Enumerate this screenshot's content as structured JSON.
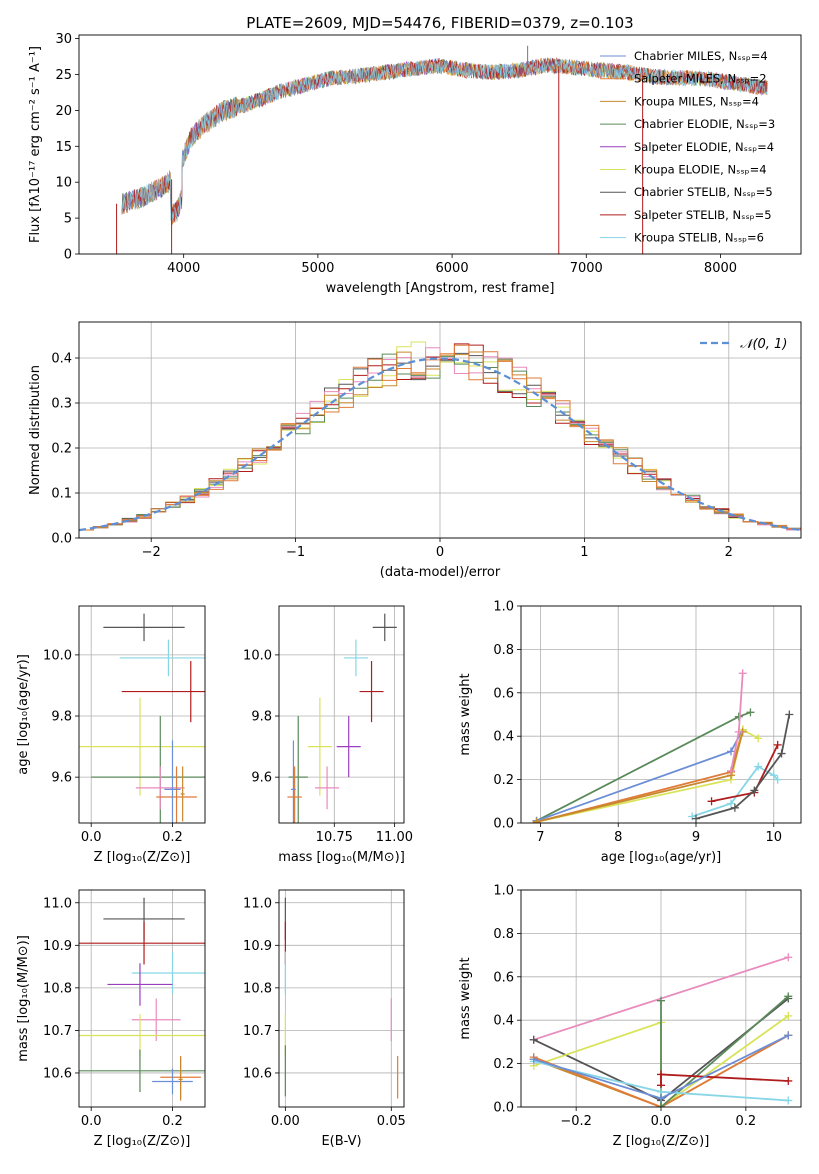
{
  "figure_title": "PLATE=2609, MJD=54476, FIBERID=0379, z=0.103",
  "colors": {
    "Chabrier MILES": "#6b8ed6",
    "Salpeter MILES": "#e07b39",
    "Kroupa MILES": "#c8892e",
    "Chabrier ELODIE": "#5a8a5a",
    "Salpeter ELODIE": "#9b3fc0",
    "Kroupa ELODIE": "#d9e35a",
    "Chabrier STELIB": "#555555",
    "Salpeter STELIB": "#b01c1c",
    "Kroupa STELIB": "#86d6e6",
    "pink": "#e88bbd",
    "gauss": "#5b8fd6",
    "grid": "#b0b0b0"
  },
  "chart_data": [
    {
      "id": "spectrum",
      "type": "line",
      "title": "PLATE=2609, MJD=54476, FIBERID=0379, z=0.103",
      "xlabel": "wavelength [Angstrom, rest frame]",
      "ylabel": "Flux [fλ10⁻¹⁷ erg cm⁻² s⁻¹ A⁻¹]",
      "xlim": [
        3220,
        8600
      ],
      "ylim": [
        0,
        30.5
      ],
      "xticks": [
        "4000",
        "5000",
        "6000",
        "7000",
        "8000"
      ],
      "yticks": [
        "0",
        "5",
        "10",
        "15",
        "20",
        "25",
        "30"
      ],
      "grid": false,
      "legend_position": "right",
      "legend": [
        "Chabrier MILES, N_SSP=4",
        "Salpeter MILES, N_SSP=2",
        "Kroupa MILES, N_SSP=4",
        "Chabrier ELODIE, N_SSP=3",
        "Salpeter ELODIE, N_SSP=4",
        "Kroupa ELODIE, N_SSP=4",
        "Chabrier STELIB, N_SSP=5",
        "Salpeter STELIB, N_SSP=5",
        "Kroupa STELIB, N_SSP=6"
      ],
      "continuum": {
        "x": [
          3550,
          3700,
          3850,
          3950,
          4050,
          4150,
          4300,
          4500,
          4700,
          4900,
          5100,
          5300,
          5500,
          5700,
          5900,
          6100,
          6300,
          6500,
          6700,
          6900,
          7100,
          7300,
          7500,
          7700,
          7900,
          8100,
          8300
        ],
        "y": [
          7,
          8,
          9.5,
          11,
          16,
          18,
          20,
          21,
          22.5,
          23.5,
          24.5,
          24.8,
          25.3,
          25.8,
          26.2,
          25.6,
          25.3,
          25.6,
          26.3,
          26,
          25.6,
          25.3,
          24.7,
          24.5,
          24.4,
          23.8,
          23.2
        ]
      },
      "features": [
        {
          "x": 6563,
          "y": 29
        },
        {
          "x": 3500,
          "y": 0
        },
        {
          "x": 3910,
          "y": 0
        },
        {
          "x": 6795,
          "y": 0
        },
        {
          "x": 7420,
          "y": 0
        }
      ]
    },
    {
      "id": "residual-hist",
      "type": "line",
      "xlabel": "(data-model)/error",
      "ylabel": "Normed distribution",
      "xlim": [
        -2.5,
        2.5
      ],
      "ylim": [
        0,
        0.48
      ],
      "xticks": [
        "−2",
        "−1",
        "0",
        "1",
        "2"
      ],
      "yticks": [
        "0.0",
        "0.1",
        "0.2",
        "0.3",
        "0.4"
      ],
      "grid": true,
      "legend": [
        "𝒩(0, 1)"
      ],
      "legend_position": "top-right",
      "bin_width": 0.1
    },
    {
      "id": "age-vs-Z",
      "type": "scatter",
      "xlabel": "Z [log₁₀(Z/Z⊙)]",
      "ylabel": "age  [log₁₀(age/yr)]",
      "xlim": [
        -0.03,
        0.28
      ],
      "ylim": [
        9.45,
        10.16
      ],
      "xticks": [
        "0.0",
        "0.2"
      ],
      "yticks": [
        "9.6",
        "9.8",
        "10.0"
      ],
      "grid": true,
      "points": [
        {
          "label": "Chabrier STELIB",
          "x": 0.13,
          "xerr": 0.1,
          "y": 10.09,
          "yerr": 0.045
        },
        {
          "label": "Kroupa STELIB",
          "x": 0.19,
          "xerr": 0.12,
          "y": 9.99,
          "yerr": 0.06
        },
        {
          "label": "Salpeter STELIB",
          "x": 0.245,
          "xerr": 0.17,
          "y": 9.88,
          "yerr": 0.1
        },
        {
          "label": "Kroupa ELODIE",
          "x": 0.12,
          "xerr": 0.17,
          "y": 9.7,
          "yerr": 0.16
        },
        {
          "label": "Chabrier ELODIE",
          "x": 0.17,
          "xerr": 0.17,
          "y": 9.6,
          "yerr": 0.2
        },
        {
          "label": "pink",
          "x": 0.17,
          "xerr": 0.06,
          "y": 9.565,
          "yerr": 0.07
        },
        {
          "label": "Salpeter MILES",
          "x": 0.21,
          "xerr": 0.05,
          "y": 9.535,
          "yerr": 0.1
        },
        {
          "label": "Chabrier MILES",
          "x": 0.2,
          "xerr": 0.02,
          "y": 9.56,
          "yerr": 0.16
        },
        {
          "label": "Kroupa MILES",
          "x": 0.225,
          "xerr": 0.005,
          "y": 9.545,
          "yerr": 0.09
        }
      ]
    },
    {
      "id": "age-vs-mass",
      "type": "scatter",
      "xlabel": "mass [log₁₀(M/M⊙)]",
      "ylabel": "",
      "xlim": [
        10.52,
        11.04
      ],
      "ylim": [
        9.45,
        10.16
      ],
      "xticks": [
        "10.75",
        "11.00"
      ],
      "yticks": [
        "9.6",
        "9.8",
        "10.0"
      ],
      "grid": true,
      "points": [
        {
          "label": "Chabrier STELIB",
          "x": 10.96,
          "xerr": 0.05,
          "y": 10.09,
          "yerr": 0.045
        },
        {
          "label": "Kroupa STELIB",
          "x": 10.84,
          "xerr": 0.05,
          "y": 9.99,
          "yerr": 0.06
        },
        {
          "label": "Salpeter STELIB",
          "x": 10.905,
          "xerr": 0.05,
          "y": 9.88,
          "yerr": 0.1
        },
        {
          "label": "Salpeter ELODIE",
          "x": 10.81,
          "xerr": 0.05,
          "y": 9.7,
          "yerr": 0.1
        },
        {
          "label": "Kroupa ELODIE",
          "x": 10.69,
          "xerr": 0.05,
          "y": 9.7,
          "yerr": 0.16
        },
        {
          "label": "Chabrier ELODIE",
          "x": 10.6,
          "xerr": 0.04,
          "y": 9.6,
          "yerr": 0.2
        },
        {
          "label": "pink",
          "x": 10.72,
          "xerr": 0.05,
          "y": 9.565,
          "yerr": 0.07
        },
        {
          "label": "Salpeter MILES",
          "x": 10.585,
          "xerr": 0.03,
          "y": 9.535,
          "yerr": 0.1
        },
        {
          "label": "Chabrier MILES",
          "x": 10.58,
          "xerr": 0.01,
          "y": 9.56,
          "yerr": 0.16
        }
      ]
    },
    {
      "id": "weight-vs-age",
      "type": "line",
      "xlabel": "age  [log₁₀(age/yr)]",
      "ylabel": "mass weight",
      "xlim": [
        6.75,
        10.35
      ],
      "ylim": [
        0,
        1.0
      ],
      "xticks": [
        "7",
        "8",
        "9",
        "10"
      ],
      "yticks": [
        "0.0",
        "0.2",
        "0.4",
        "0.6",
        "0.8",
        "1.0"
      ],
      "grid": true,
      "series": [
        {
          "label": "Chabrier ELODIE",
          "x": [
            6.95,
            9.55,
            9.7
          ],
          "y": [
            0.01,
            0.49,
            0.51
          ]
        },
        {
          "label": "Chabrier MILES",
          "x": [
            6.95,
            9.45,
            9.6
          ],
          "y": [
            0.01,
            0.33,
            0.43
          ]
        },
        {
          "label": "Salpeter MILES",
          "x": [
            6.95,
            9.45,
            9.6
          ],
          "y": [
            0.005,
            0.235,
            0.43
          ]
        },
        {
          "label": "Kroupa ELODIE",
          "x": [
            6.95,
            9.45,
            9.6,
            9.8
          ],
          "y": [
            0.005,
            0.2,
            0.43,
            0.39
          ]
        },
        {
          "label": "Kroupa MILES",
          "x": [
            6.95,
            9.45,
            9.6
          ],
          "y": [
            0.005,
            0.22,
            0.42
          ]
        },
        {
          "label": "pink",
          "x": [
            9.45,
            9.55,
            9.6
          ],
          "y": [
            0.24,
            0.42,
            0.69
          ]
        },
        {
          "label": "Kroupa STELIB",
          "x": [
            8.95,
            9.45,
            9.8,
            10.0,
            10.05
          ],
          "y": [
            0.03,
            0.09,
            0.26,
            0.22,
            0.2
          ]
        },
        {
          "label": "Salpeter STELIB",
          "x": [
            9.2,
            9.75,
            10.05
          ],
          "y": [
            0.1,
            0.14,
            0.36
          ]
        },
        {
          "label": "Chabrier STELIB",
          "x": [
            9.0,
            9.5,
            9.75,
            10.1,
            10.2
          ],
          "y": [
            0.02,
            0.07,
            0.15,
            0.32,
            0.5
          ]
        }
      ]
    },
    {
      "id": "mass-vs-Z",
      "type": "scatter",
      "xlabel": "Z [log₁₀(Z/Z⊙)]",
      "ylabel": "mass [log₁₀(M/M⊙)]",
      "xlim": [
        -0.03,
        0.28
      ],
      "ylim": [
        10.52,
        11.03
      ],
      "xticks": [
        "0.0",
        "0.2"
      ],
      "yticks": [
        "10.6",
        "10.7",
        "10.8",
        "10.9",
        "11.0"
      ],
      "grid": true,
      "points": [
        {
          "label": "Chabrier STELIB",
          "x": 0.13,
          "xerr": 0.1,
          "y": 10.962,
          "yerr": 0.05
        },
        {
          "label": "Salpeter STELIB",
          "x": 0.13,
          "xerr": 0.18,
          "y": 10.905,
          "yerr": 0.05
        },
        {
          "label": "Kroupa STELIB",
          "x": 0.2,
          "xerr": 0.1,
          "y": 10.835,
          "yerr": 0.05
        },
        {
          "label": "Salpeter ELODIE",
          "x": 0.12,
          "xerr": 0.08,
          "y": 10.808,
          "yerr": 0.05
        },
        {
          "label": "pink",
          "x": 0.16,
          "xerr": 0.06,
          "y": 10.725,
          "yerr": 0.05
        },
        {
          "label": "Kroupa ELODIE",
          "x": 0.12,
          "xerr": 0.17,
          "y": 10.688,
          "yerr": 0.05
        },
        {
          "label": "Chabrier ELODIE",
          "x": 0.12,
          "xerr": 0.17,
          "y": 10.605,
          "yerr": 0.05
        },
        {
          "label": "Salpeter MILES",
          "x": 0.22,
          "xerr": 0.05,
          "y": 10.59,
          "yerr": 0.05
        },
        {
          "label": "Chabrier MILES",
          "x": 0.2,
          "xerr": 0.05,
          "y": 10.58,
          "yerr": 0.03
        },
        {
          "label": "Kroupa MILES",
          "x": 0.22,
          "xerr": 0.005,
          "y": 10.585,
          "yerr": 0.05
        }
      ]
    },
    {
      "id": "mass-vs-EBV",
      "type": "scatter",
      "xlabel": "E(B-V)",
      "ylabel": "",
      "xlim": [
        -0.003,
        0.056
      ],
      "ylim": [
        10.52,
        11.03
      ],
      "xticks": [
        "0.00",
        "0.05"
      ],
      "yticks": [
        "10.6",
        "10.7",
        "10.8",
        "10.9",
        "11.0"
      ],
      "grid": true,
      "points": [
        {
          "label": "Chabrier STELIB",
          "x": 0.0,
          "xerr": 0.0,
          "y": 10.962,
          "yerr": 0.05
        },
        {
          "label": "Salpeter STELIB",
          "x": 0.0,
          "xerr": 0.0,
          "y": 10.905,
          "yerr": 0.05
        },
        {
          "label": "Kroupa STELIB",
          "x": 0.0,
          "xerr": 0.0,
          "y": 10.835,
          "yerr": 0.05
        },
        {
          "label": "Kroupa ELODIE",
          "x": 0.0,
          "xerr": 0.0,
          "y": 10.688,
          "yerr": 0.05
        },
        {
          "label": "Chabrier ELODIE",
          "x": 0.0,
          "xerr": 0.0,
          "y": 10.605,
          "yerr": 0.06
        },
        {
          "label": "pink",
          "x": 0.05,
          "xerr": 0.0,
          "y": 10.725,
          "yerr": 0.05
        },
        {
          "label": "Salpeter MILES",
          "x": 0.053,
          "xerr": 0.0,
          "y": 10.59,
          "yerr": 0.05
        }
      ]
    },
    {
      "id": "weight-vs-Z",
      "type": "line",
      "xlabel": "Z [log₁₀(Z/Z⊙)]",
      "ylabel": "mass weight",
      "xlim": [
        -0.33,
        0.33
      ],
      "ylim": [
        0,
        1.0
      ],
      "xticks": [
        "−0.2",
        "0.0",
        "0.2"
      ],
      "yticks": [
        "0.0",
        "0.2",
        "0.4",
        "0.6",
        "0.8",
        "1.0"
      ],
      "grid": true,
      "series": [
        {
          "label": "pink",
          "x": [
            -0.3,
            0.3
          ],
          "y": [
            0.31,
            0.69
          ]
        },
        {
          "label": "Chabrier STELIB",
          "x": [
            -0.3,
            0.0,
            0.3
          ],
          "y": [
            0.31,
            0.03,
            0.5
          ]
        },
        {
          "label": "Kroupa ELODIE",
          "x": [
            -0.3,
            0.0,
            0.0,
            0.3
          ],
          "y": [
            0.19,
            0.39,
            0.0,
            0.42
          ]
        },
        {
          "label": "Kroupa MILES",
          "x": [
            -0.3,
            0.0,
            0.3
          ],
          "y": [
            0.22,
            0.0,
            0.33
          ]
        },
        {
          "label": "Salpeter MILES",
          "x": [
            -0.3,
            0.0,
            0.3
          ],
          "y": [
            0.23,
            0.0,
            0.33
          ]
        },
        {
          "label": "Chabrier ELODIE",
          "x": [
            0.0,
            0.0,
            0.3
          ],
          "y": [
            0.49,
            0.0,
            0.51
          ]
        },
        {
          "label": "Salpeter STELIB",
          "x": [
            0.0,
            0.0,
            0.3
          ],
          "y": [
            0.1,
            0.15,
            0.12
          ]
        },
        {
          "label": "Kroupa STELIB",
          "x": [
            -0.3,
            0.0,
            0.3
          ],
          "y": [
            0.21,
            0.07,
            0.03
          ]
        },
        {
          "label": "Chabrier MILES",
          "x": [
            -0.3,
            0.0,
            0.3
          ],
          "y": [
            0.22,
            0.04,
            0.33
          ]
        }
      ]
    }
  ]
}
